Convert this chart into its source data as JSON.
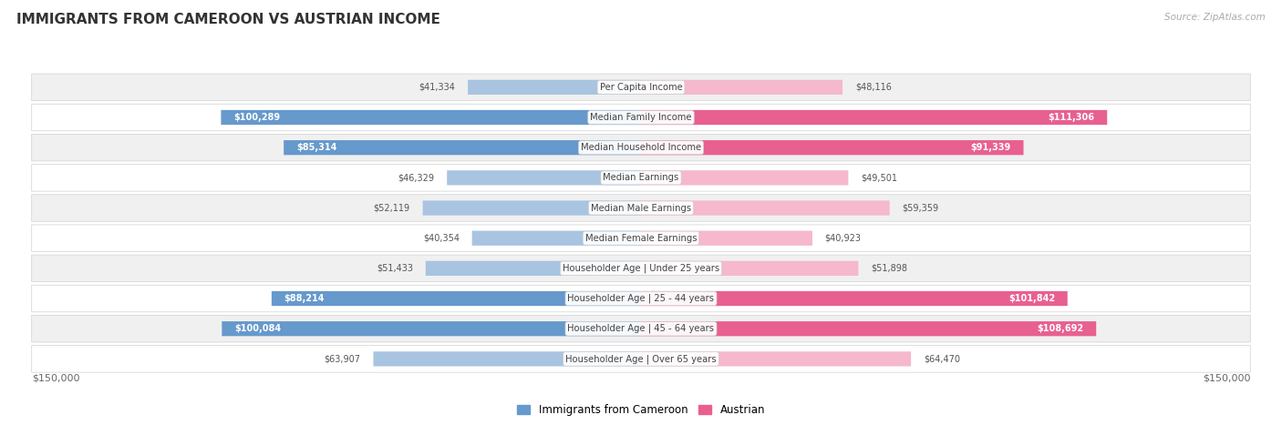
{
  "title": "IMMIGRANTS FROM CAMEROON VS AUSTRIAN INCOME",
  "source": "Source: ZipAtlas.com",
  "categories": [
    "Per Capita Income",
    "Median Family Income",
    "Median Household Income",
    "Median Earnings",
    "Median Male Earnings",
    "Median Female Earnings",
    "Householder Age | Under 25 years",
    "Householder Age | 25 - 44 years",
    "Householder Age | 45 - 64 years",
    "Householder Age | Over 65 years"
  ],
  "cameroon_values": [
    41334,
    100289,
    85314,
    46329,
    52119,
    40354,
    51433,
    88214,
    100084,
    63907
  ],
  "austrian_values": [
    48116,
    111306,
    91339,
    49501,
    59359,
    40923,
    51898,
    101842,
    108692,
    64470
  ],
  "cameroon_labels": [
    "$41,334",
    "$100,289",
    "$85,314",
    "$46,329",
    "$52,119",
    "$40,354",
    "$51,433",
    "$88,214",
    "$100,084",
    "$63,907"
  ],
  "austrian_labels": [
    "$48,116",
    "$111,306",
    "$91,339",
    "$49,501",
    "$59,359",
    "$40,923",
    "$51,898",
    "$101,842",
    "$108,692",
    "$64,470"
  ],
  "max_value": 150000,
  "cameroon_color_light": "#a8c4e0",
  "cameroon_color_dark": "#6699cc",
  "austrian_color_light": "#f5b8cc",
  "austrian_color_dark": "#e86090",
  "label_inside_threshold": 70000,
  "bg_color": "#ffffff",
  "row_bg_odd": "#f0f0f0",
  "row_bg_even": "#ffffff",
  "row_border_color": "#d0d0d0"
}
